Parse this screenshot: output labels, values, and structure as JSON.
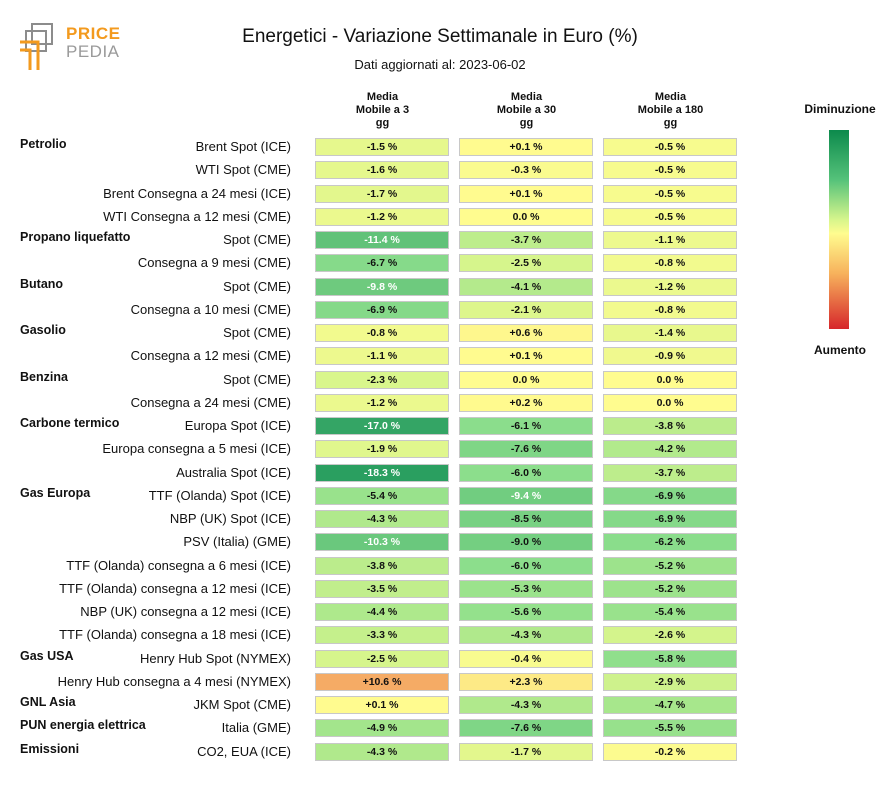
{
  "header": {
    "logo_text_top": "PRICE",
    "logo_text_bottom": "PEDIA",
    "title": "Energetici - Variazione Settimanale in Euro (%)",
    "subtitle": "Dati aggiornati al: 2023-06-02"
  },
  "columns": [
    "Media\nMobile a 3\ngg",
    "Media\nMobile a 30\ngg",
    "Media\nMobile a 180\ngg"
  ],
  "legend": {
    "top": "Diminuzione",
    "bottom": "Aumento"
  },
  "colors": {
    "logo_orange": "#f39a1e",
    "logo_gray": "#8c8c8c"
  },
  "chart_data": {
    "type": "table",
    "title": "Energetici - Variazione Settimanale in Euro (%)",
    "subtitle": "Dati aggiornati al: 2023-06-02",
    "columns": [
      "Media Mobile a 3 gg",
      "Media Mobile a 30 gg",
      "Media Mobile a 180 gg"
    ],
    "color_scale": {
      "top": "Diminuzione",
      "bottom": "Aumento"
    },
    "rows": [
      {
        "category": "Petrolio",
        "label": "Brent Spot (ICE)",
        "values": [
          -1.5,
          0.1,
          -0.5
        ]
      },
      {
        "category": "",
        "label": "WTI Spot (CME)",
        "values": [
          -1.6,
          -0.3,
          -0.5
        ]
      },
      {
        "category": "",
        "label": "Brent Consegna a 24 mesi (ICE)",
        "values": [
          -1.7,
          0.1,
          -0.5
        ]
      },
      {
        "category": "",
        "label": "WTI Consegna a 12 mesi (CME)",
        "values": [
          -1.2,
          0.0,
          -0.5
        ]
      },
      {
        "category": "Propano liquefatto",
        "label": "Spot (CME)",
        "values": [
          -11.4,
          -3.7,
          -1.1
        ]
      },
      {
        "category": "",
        "label": "Consegna a 9 mesi (CME)",
        "values": [
          -6.7,
          -2.5,
          -0.8
        ]
      },
      {
        "category": "Butano",
        "label": "Spot (CME)",
        "values": [
          -9.8,
          -4.1,
          -1.2
        ]
      },
      {
        "category": "",
        "label": "Consegna a 10 mesi (CME)",
        "values": [
          -6.9,
          -2.1,
          -0.8
        ]
      },
      {
        "category": "Gasolio",
        "label": "Spot (CME)",
        "values": [
          -0.8,
          0.6,
          -1.4
        ]
      },
      {
        "category": "",
        "label": "Consegna a 12 mesi (CME)",
        "values": [
          -1.1,
          0.1,
          -0.9
        ]
      },
      {
        "category": "Benzina",
        "label": "Spot (CME)",
        "values": [
          -2.3,
          0.0,
          0.0
        ]
      },
      {
        "category": "",
        "label": "Consegna a 24 mesi (CME)",
        "values": [
          -1.2,
          0.2,
          0.0
        ]
      },
      {
        "category": "Carbone termico",
        "label": "Europa Spot (ICE)",
        "values": [
          -17.0,
          -6.1,
          -3.8
        ]
      },
      {
        "category": "",
        "label": "Europa consegna a 5 mesi (ICE)",
        "values": [
          -1.9,
          -7.6,
          -4.2
        ]
      },
      {
        "category": "",
        "label": "Australia Spot (ICE)",
        "values": [
          -18.3,
          -6.0,
          -3.7
        ]
      },
      {
        "category": "Gas Europa",
        "label": "TTF (Olanda) Spot (ICE)",
        "values": [
          -5.4,
          -9.4,
          -6.9
        ]
      },
      {
        "category": "",
        "label": "NBP (UK) Spot (ICE)",
        "values": [
          -4.3,
          -8.5,
          -6.9
        ]
      },
      {
        "category": "",
        "label": "PSV (Italia) (GME)",
        "values": [
          -10.3,
          -9.0,
          -6.2
        ]
      },
      {
        "category": "",
        "label": "TTF (Olanda) consegna a 6 mesi (ICE)",
        "values": [
          -3.8,
          -6.0,
          -5.2
        ]
      },
      {
        "category": "",
        "label": "TTF (Olanda) consegna a 12 mesi (ICE)",
        "values": [
          -3.5,
          -5.3,
          -5.2
        ]
      },
      {
        "category": "",
        "label": "NBP (UK) consegna a 12 mesi (ICE)",
        "values": [
          -4.4,
          -5.6,
          -5.4
        ]
      },
      {
        "category": "",
        "label": "TTF (Olanda) consegna a 18 mesi (ICE)",
        "values": [
          -3.3,
          -4.3,
          -2.6
        ]
      },
      {
        "category": "Gas USA",
        "label": "Henry Hub Spot (NYMEX)",
        "values": [
          -2.5,
          -0.4,
          -5.8
        ]
      },
      {
        "category": "",
        "label": "Henry Hub consegna a 4 mesi (NYMEX)",
        "values": [
          10.6,
          2.3,
          -2.9
        ]
      },
      {
        "category": "GNL Asia",
        "label": "JKM Spot (CME)",
        "values": [
          0.1,
          -4.3,
          -4.7
        ]
      },
      {
        "category": "PUN energia elettrica",
        "label": "Italia (GME)",
        "values": [
          -4.9,
          -7.6,
          -5.5
        ]
      },
      {
        "category": "Emissioni",
        "label": "CO2, EUA (ICE)",
        "values": [
          -4.3,
          -1.7,
          -0.2
        ]
      }
    ]
  }
}
